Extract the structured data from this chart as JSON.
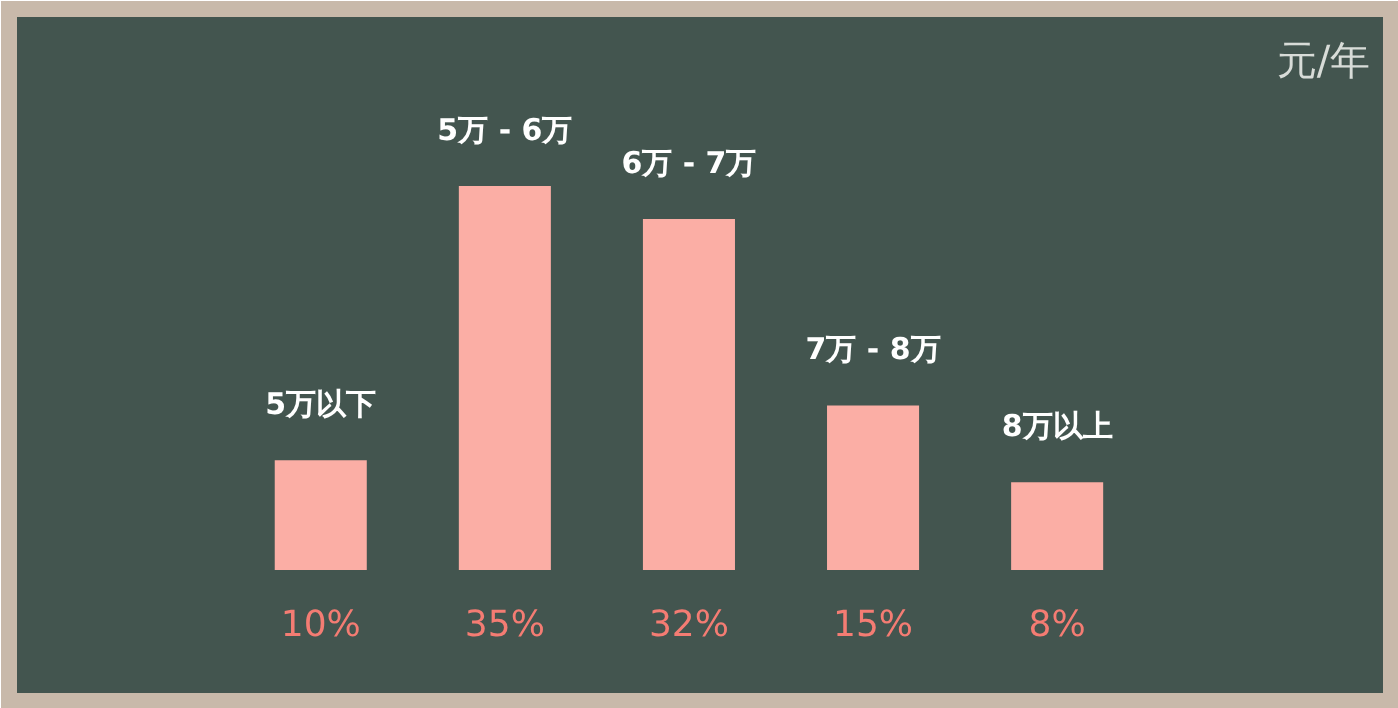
{
  "chart_data": {
    "type": "bar",
    "categories": [
      "5万以下",
      "5万 - 6万",
      "6万 - 7万",
      "7万 - 8万",
      "8万以上"
    ],
    "values": [
      10,
      35,
      32,
      15,
      8
    ],
    "value_labels": [
      "10%",
      "35%",
      "32%",
      "15%",
      "8%"
    ],
    "color": "#fbaea5",
    "annotations": [
      "元/年"
    ]
  }
}
